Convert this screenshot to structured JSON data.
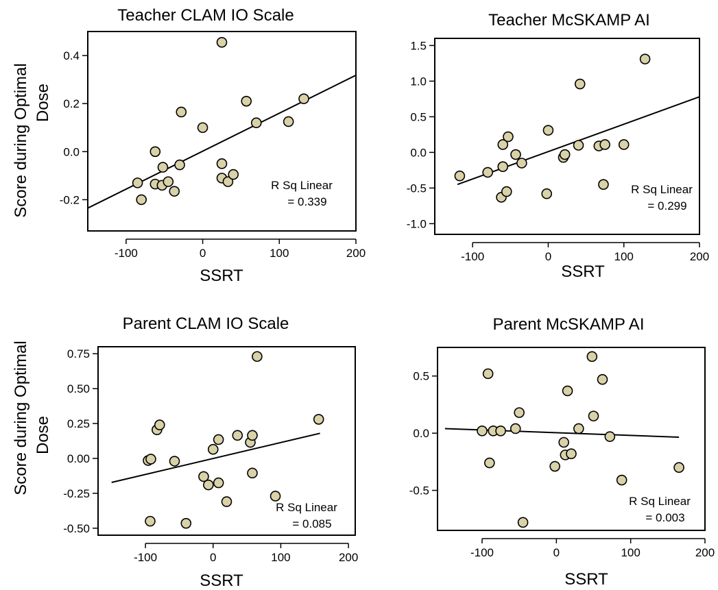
{
  "figure": {
    "shared_ylabel": [
      "Score during Optimal",
      "Dose"
    ]
  },
  "colors": {
    "point_fill": "#D9D1A8",
    "point_stroke": "#000000",
    "frame": "#000000"
  },
  "chart_data": [
    {
      "type": "scatter",
      "title": "Teacher CLAM IO Scale",
      "xlabel": "SSRT",
      "xlim": [
        -150,
        200
      ],
      "ylim": [
        -0.33,
        0.5
      ],
      "xticks": [
        -100,
        0,
        100,
        200
      ],
      "xtick_labels": [
        "-100",
        "0",
        "100",
        "200"
      ],
      "yticks": [
        -0.2,
        0.0,
        0.2,
        0.4
      ],
      "ytick_labels": [
        "-0.2",
        "0.0",
        "0.2",
        "0.4"
      ],
      "points": [
        [
          -85,
          -0.13
        ],
        [
          -80,
          -0.2
        ],
        [
          -62,
          0.0
        ],
        [
          -62,
          -0.135
        ],
        [
          -52,
          -0.065
        ],
        [
          -53,
          -0.14
        ],
        [
          -45,
          -0.125
        ],
        [
          -37,
          -0.165
        ],
        [
          -30,
          -0.055
        ],
        [
          -28,
          0.165
        ],
        [
          0,
          0.1
        ],
        [
          25,
          0.455
        ],
        [
          25,
          -0.05
        ],
        [
          25,
          -0.11
        ],
        [
          33,
          -0.125
        ],
        [
          40,
          -0.095
        ],
        [
          57,
          0.21
        ],
        [
          70,
          0.12
        ],
        [
          112,
          0.125
        ],
        [
          132,
          0.22
        ]
      ],
      "fit": {
        "x": [
          -150,
          200
        ],
        "y": [
          -0.235,
          0.318
        ]
      },
      "annotation": [
        "R Sq Linear",
        "= 0.339"
      ]
    },
    {
      "type": "scatter",
      "title": "Teacher McSKAMP AI",
      "xlabel": "SSRT",
      "xlim": [
        -150,
        200
      ],
      "ylim": [
        -1.15,
        1.6
      ],
      "xticks": [
        -100,
        0,
        100,
        200
      ],
      "xtick_labels": [
        "-100",
        "0",
        "100",
        "200"
      ],
      "yticks": [
        -1.0,
        -0.5,
        0.0,
        0.5,
        1.0,
        1.5
      ],
      "ytick_labels": [
        "-1.0",
        "-0.5",
        "0.0",
        "0.5",
        "1.0",
        "1.5"
      ],
      "points": [
        [
          -117,
          -0.33
        ],
        [
          -80,
          -0.28
        ],
        [
          -62,
          -0.63
        ],
        [
          -60,
          -0.2
        ],
        [
          -60,
          0.11
        ],
        [
          -55,
          -0.55
        ],
        [
          -53,
          0.22
        ],
        [
          -43,
          -0.03
        ],
        [
          -35,
          -0.15
        ],
        [
          -2,
          -0.58
        ],
        [
          0,
          0.31
        ],
        [
          20,
          -0.07
        ],
        [
          22,
          -0.03
        ],
        [
          40,
          0.1
        ],
        [
          42,
          0.96
        ],
        [
          67,
          0.09
        ],
        [
          73,
          -0.45
        ],
        [
          75,
          0.11
        ],
        [
          100,
          0.11
        ],
        [
          128,
          1.31
        ]
      ],
      "fit": {
        "x": [
          -120,
          200
        ],
        "y": [
          -0.45,
          0.78
        ]
      },
      "annotation": [
        "R Sq Linear",
        "= 0.299"
      ]
    },
    {
      "type": "scatter",
      "title": "Parent CLAM IO Scale",
      "xlabel": "SSRT",
      "xlim": [
        -170,
        210
      ],
      "ylim": [
        -0.55,
        0.8
      ],
      "xticks": [
        -100,
        0,
        100,
        200
      ],
      "xtick_labels": [
        "-100",
        "0",
        "100",
        "200"
      ],
      "yticks": [
        -0.5,
        -0.25,
        0.0,
        0.25,
        0.5,
        0.75
      ],
      "ytick_labels": [
        "-0.50",
        "-0.25",
        "0.00",
        "0.25",
        "0.50",
        "0.75"
      ],
      "points": [
        [
          -96,
          -0.015
        ],
        [
          -92,
          -0.005
        ],
        [
          -93,
          -0.45
        ],
        [
          -83,
          0.205
        ],
        [
          -79,
          0.24
        ],
        [
          -57,
          -0.02
        ],
        [
          -40,
          -0.465
        ],
        [
          -14,
          -0.13
        ],
        [
          -7,
          -0.19
        ],
        [
          0,
          0.065
        ],
        [
          8,
          0.135
        ],
        [
          8,
          -0.175
        ],
        [
          20,
          -0.31
        ],
        [
          36,
          0.165
        ],
        [
          55,
          0.115
        ],
        [
          58,
          0.165
        ],
        [
          58,
          -0.105
        ],
        [
          65,
          0.73
        ],
        [
          92,
          -0.27
        ],
        [
          156,
          0.28
        ]
      ],
      "fit": {
        "x": [
          -150,
          158
        ],
        "y": [
          -0.172,
          0.18
        ]
      },
      "annotation": [
        "R Sq Linear",
        "= 0.085"
      ]
    },
    {
      "type": "scatter",
      "title": "Parent McSKAMP AI",
      "xlabel": "SSRT",
      "xlim": [
        -160,
        200
      ],
      "ylim": [
        -0.85,
        0.75
      ],
      "xticks": [
        -100,
        0,
        100,
        200
      ],
      "xtick_labels": [
        "-100",
        "0",
        "100",
        "200"
      ],
      "yticks": [
        -0.5,
        0.0,
        0.5
      ],
      "ytick_labels": [
        "-0.5",
        "0.0",
        "0.5"
      ],
      "points": [
        [
          -100,
          0.02
        ],
        [
          -92,
          0.52
        ],
        [
          -90,
          -0.26
        ],
        [
          -85,
          0.02
        ],
        [
          -75,
          0.02
        ],
        [
          -55,
          0.04
        ],
        [
          -50,
          0.18
        ],
        [
          -45,
          -0.78
        ],
        [
          -2,
          -0.29
        ],
        [
          10,
          -0.08
        ],
        [
          12,
          -0.19
        ],
        [
          15,
          0.37
        ],
        [
          20,
          -0.18
        ],
        [
          30,
          0.04
        ],
        [
          48,
          0.67
        ],
        [
          50,
          0.15
        ],
        [
          62,
          0.47
        ],
        [
          72,
          -0.03
        ],
        [
          88,
          -0.41
        ],
        [
          165,
          -0.3
        ]
      ],
      "fit": {
        "x": [
          -150,
          165
        ],
        "y": [
          0.04,
          -0.035
        ]
      },
      "annotation": [
        "R Sq Linear",
        "= 0.003"
      ]
    }
  ]
}
